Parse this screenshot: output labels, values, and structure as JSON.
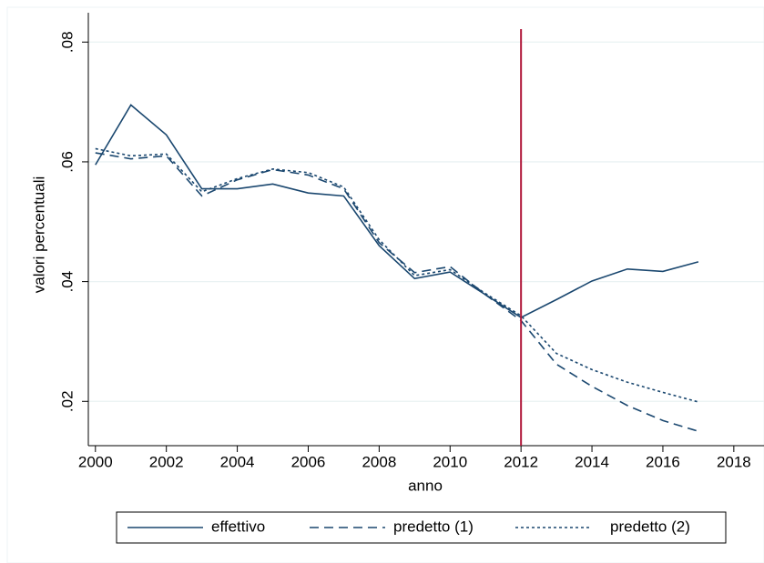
{
  "chart_data": {
    "type": "line",
    "x_label": "anno",
    "y_label": "valori percentuali",
    "x": [
      2000,
      2001,
      2002,
      2003,
      2004,
      2005,
      2006,
      2007,
      2008,
      2009,
      2010,
      2011,
      2012,
      2013,
      2014,
      2015,
      2016,
      2017
    ],
    "series": [
      {
        "name": "effettivo",
        "color": "#1a476f",
        "dash": "none",
        "values": [
          0.0595,
          0.0695,
          0.0645,
          0.0555,
          0.0555,
          0.0563,
          0.0548,
          0.0543,
          0.046,
          0.0405,
          0.0416,
          0.0378,
          0.034,
          0.037,
          0.0401,
          0.0421,
          0.0417,
          0.0433
        ]
      },
      {
        "name": "predetto (1)",
        "color": "#1a476f",
        "dash": "10,6",
        "values": [
          0.0615,
          0.0605,
          0.061,
          0.0543,
          0.057,
          0.0587,
          0.0578,
          0.0555,
          0.0465,
          0.0415,
          0.0425,
          0.0378,
          0.0335,
          0.0262,
          0.0225,
          0.0193,
          0.0168,
          0.015
        ]
      },
      {
        "name": "predetto (2)",
        "color": "#1a476f",
        "dash": "3,3",
        "values": [
          0.0622,
          0.061,
          0.0613,
          0.055,
          0.0572,
          0.0588,
          0.0582,
          0.0558,
          0.047,
          0.041,
          0.042,
          0.038,
          0.0343,
          0.028,
          0.0253,
          0.0232,
          0.0215,
          0.0199
        ]
      }
    ],
    "vline": {
      "x": 2012,
      "color": "#b0173a"
    },
    "xlim": [
      1999.8,
      2018.62
    ],
    "ylim": [
      0.0126,
      0.0849
    ],
    "xticks": [
      2000,
      2002,
      2004,
      2006,
      2008,
      2010,
      2012,
      2014,
      2016,
      2018
    ],
    "yticks": [
      {
        "value": 0.02,
        "label": ".02"
      },
      {
        "value": 0.04,
        "label": ".04"
      },
      {
        "value": 0.06,
        "label": ".06"
      },
      {
        "value": 0.08,
        "label": ".08"
      }
    ],
    "grid": true,
    "legend": "bottom"
  }
}
